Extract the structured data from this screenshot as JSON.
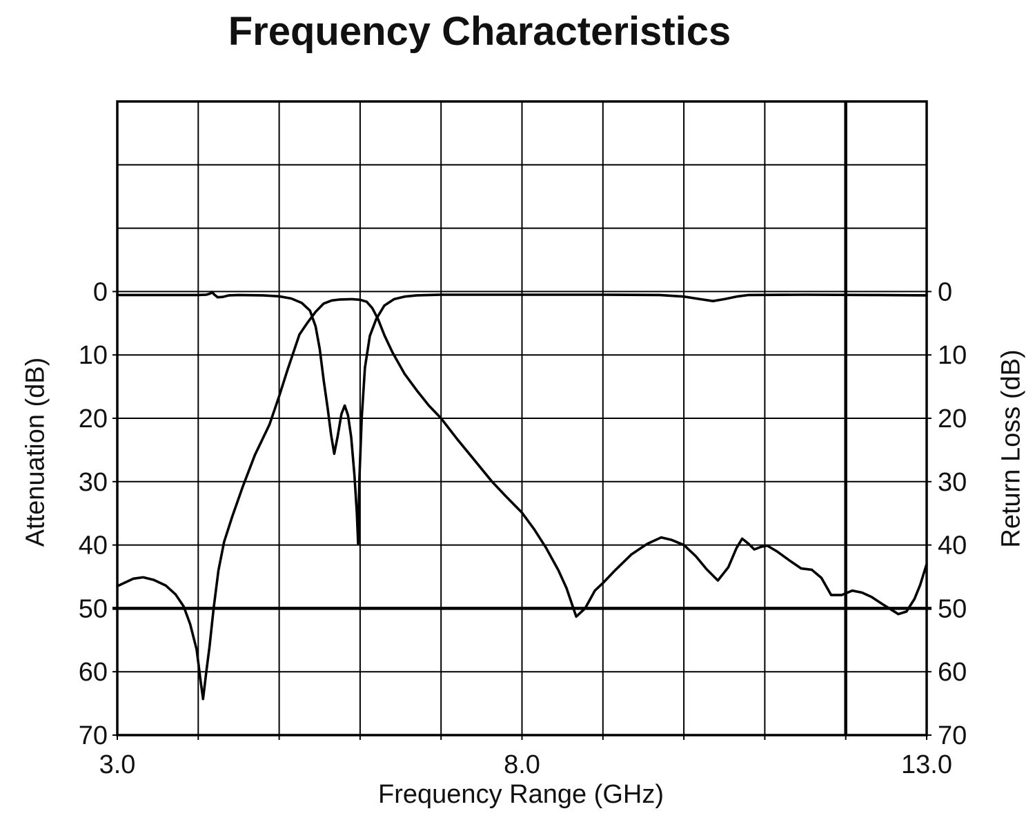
{
  "chart_data": {
    "type": "line",
    "title": "Frequency Characteristics",
    "xlabel": "Frequency Range (GHz)",
    "ylabel_left": "Attenuation (dB)",
    "ylabel_right": "Return Loss (dB)",
    "xlim": [
      3.0,
      13.0
    ],
    "ylim": [
      -30,
      70
    ],
    "y_axis_inverted_note": "0 dB at top of labeled range, 70 dB at bottom",
    "grid": true,
    "x_grid_step": 1.0,
    "y_grid_step": 10,
    "line_color": "#000000",
    "background_color": "#ffffff",
    "legend": "none",
    "x_ticks": [
      {
        "value": 3.0,
        "label": "3.0"
      },
      {
        "value": 8.0,
        "label": "8.0"
      },
      {
        "value": 13.0,
        "label": "13.0"
      }
    ],
    "y_ticks": [
      {
        "value": 0,
        "label": "0"
      },
      {
        "value": 10,
        "label": "10"
      },
      {
        "value": 20,
        "label": "20"
      },
      {
        "value": 30,
        "label": "30"
      },
      {
        "value": 40,
        "label": "40"
      },
      {
        "value": 50,
        "label": "50"
      },
      {
        "value": 60,
        "label": "60"
      },
      {
        "value": 70,
        "label": "70"
      }
    ],
    "spec_lines": [
      {
        "name": "attenuation-spec-50dB",
        "orientation": "horizontal",
        "value": 50
      },
      {
        "name": "frequency-spec-12GHz",
        "orientation": "vertical",
        "value": 12.0
      }
    ],
    "series": [
      {
        "name": "Attenuation",
        "axis": "left",
        "points": [
          [
            3.0,
            46.5
          ],
          [
            3.1,
            45.9
          ],
          [
            3.2,
            45.3
          ],
          [
            3.32,
            45.1
          ],
          [
            3.45,
            45.5
          ],
          [
            3.6,
            46.4
          ],
          [
            3.72,
            47.8
          ],
          [
            3.82,
            49.7
          ],
          [
            3.9,
            52.5
          ],
          [
            3.98,
            56.5
          ],
          [
            4.03,
            61.5
          ],
          [
            4.06,
            64.3
          ],
          [
            4.1,
            60.0
          ],
          [
            4.14,
            56.0
          ],
          [
            4.19,
            50.0
          ],
          [
            4.25,
            44.0
          ],
          [
            4.32,
            39.5
          ],
          [
            4.42,
            35.5
          ],
          [
            4.55,
            30.8
          ],
          [
            4.7,
            25.8
          ],
          [
            4.88,
            21.0
          ],
          [
            5.0,
            16.5
          ],
          [
            5.1,
            12.5
          ],
          [
            5.25,
            6.8
          ],
          [
            5.35,
            4.9
          ],
          [
            5.45,
            3.2
          ],
          [
            5.55,
            1.9
          ],
          [
            5.65,
            1.4
          ],
          [
            5.75,
            1.25
          ],
          [
            5.9,
            1.2
          ],
          [
            6.0,
            1.3
          ],
          [
            6.08,
            1.6
          ],
          [
            6.15,
            2.6
          ],
          [
            6.22,
            4.3
          ],
          [
            6.3,
            6.9
          ],
          [
            6.4,
            9.6
          ],
          [
            6.55,
            13.0
          ],
          [
            6.7,
            15.6
          ],
          [
            6.85,
            18.0
          ],
          [
            7.0,
            20.0
          ],
          [
            7.2,
            23.3
          ],
          [
            7.4,
            26.4
          ],
          [
            7.63,
            30.0
          ],
          [
            7.8,
            32.3
          ],
          [
            8.0,
            34.9
          ],
          [
            8.15,
            37.5
          ],
          [
            8.3,
            40.5
          ],
          [
            8.45,
            44.0
          ],
          [
            8.55,
            46.8
          ],
          [
            8.67,
            51.3
          ],
          [
            8.78,
            50.0
          ],
          [
            8.9,
            47.2
          ],
          [
            9.0,
            46.0
          ],
          [
            9.15,
            44.0
          ],
          [
            9.35,
            41.5
          ],
          [
            9.55,
            39.8
          ],
          [
            9.72,
            38.8
          ],
          [
            9.85,
            39.2
          ],
          [
            10.0,
            40.0
          ],
          [
            10.15,
            41.8
          ],
          [
            10.28,
            43.8
          ],
          [
            10.42,
            45.6
          ],
          [
            10.55,
            43.5
          ],
          [
            10.65,
            40.5
          ],
          [
            10.72,
            39.0
          ],
          [
            10.8,
            39.8
          ],
          [
            10.87,
            40.7
          ],
          [
            10.95,
            40.3
          ],
          [
            11.03,
            40.1
          ],
          [
            11.15,
            41.0
          ],
          [
            11.3,
            42.4
          ],
          [
            11.45,
            43.7
          ],
          [
            11.58,
            43.9
          ],
          [
            11.7,
            45.2
          ],
          [
            11.82,
            47.9
          ],
          [
            11.95,
            47.9
          ],
          [
            12.08,
            47.2
          ],
          [
            12.2,
            47.5
          ],
          [
            12.32,
            48.2
          ],
          [
            12.45,
            49.3
          ],
          [
            12.55,
            50.1
          ],
          [
            12.65,
            50.9
          ],
          [
            12.75,
            50.5
          ],
          [
            12.85,
            48.5
          ],
          [
            12.92,
            46.3
          ],
          [
            13.0,
            43.0
          ]
        ]
      },
      {
        "name": "Return Loss",
        "axis": "right",
        "points": [
          [
            3.0,
            0.55
          ],
          [
            3.6,
            0.55
          ],
          [
            4.0,
            0.55
          ],
          [
            4.1,
            0.5
          ],
          [
            4.15,
            0.3
          ],
          [
            4.17,
            0.08
          ],
          [
            4.2,
            0.5
          ],
          [
            4.24,
            0.9
          ],
          [
            4.3,
            0.85
          ],
          [
            4.38,
            0.6
          ],
          [
            4.5,
            0.55
          ],
          [
            4.8,
            0.6
          ],
          [
            5.0,
            0.75
          ],
          [
            5.15,
            1.1
          ],
          [
            5.28,
            1.8
          ],
          [
            5.38,
            3.0
          ],
          [
            5.45,
            5.5
          ],
          [
            5.5,
            9.0
          ],
          [
            5.55,
            14.0
          ],
          [
            5.6,
            18.5
          ],
          [
            5.64,
            22.5
          ],
          [
            5.68,
            25.6
          ],
          [
            5.72,
            23.0
          ],
          [
            5.77,
            19.3
          ],
          [
            5.81,
            18.0
          ],
          [
            5.85,
            19.5
          ],
          [
            5.89,
            23.0
          ],
          [
            5.93,
            29.0
          ],
          [
            5.96,
            35.0
          ],
          [
            5.975,
            39.8
          ],
          [
            5.99,
            30.0
          ],
          [
            6.02,
            20.0
          ],
          [
            6.06,
            12.0
          ],
          [
            6.12,
            7.0
          ],
          [
            6.2,
            4.3
          ],
          [
            6.3,
            2.2
          ],
          [
            6.42,
            1.2
          ],
          [
            6.55,
            0.8
          ],
          [
            6.7,
            0.6
          ],
          [
            7.0,
            0.5
          ],
          [
            8.0,
            0.5
          ],
          [
            9.0,
            0.5
          ],
          [
            9.7,
            0.55
          ],
          [
            10.0,
            0.8
          ],
          [
            10.2,
            1.2
          ],
          [
            10.36,
            1.5
          ],
          [
            10.5,
            1.2
          ],
          [
            10.65,
            0.8
          ],
          [
            10.8,
            0.55
          ],
          [
            11.5,
            0.5
          ],
          [
            12.3,
            0.55
          ],
          [
            13.0,
            0.6
          ]
        ]
      }
    ]
  }
}
